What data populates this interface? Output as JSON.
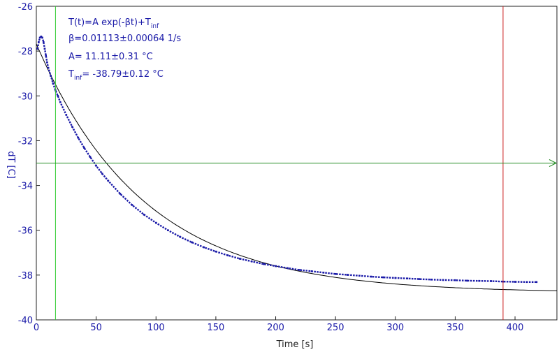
{
  "chart_data": {
    "type": "scatter",
    "title": "",
    "xlabel": "Time [s]",
    "ylabel": "dT [C]",
    "xlim": [
      0,
      435
    ],
    "ylim": [
      -40,
      -26
    ],
    "x_ticks": [
      0,
      50,
      100,
      150,
      200,
      250,
      300,
      350,
      400
    ],
    "y_ticks": [
      -40,
      -38,
      -36,
      -34,
      -32,
      -30,
      -28,
      -26
    ],
    "grid": false,
    "colors": {
      "series": "#1a1aa8",
      "fit": "#000000",
      "horizontal_cursor": "#228b22",
      "left_cursor": "#33cc33",
      "right_cursor": "#cc2222"
    },
    "cursors": {
      "vertical_left_x": 16,
      "vertical_right_x": 390,
      "horizontal_y": -33
    },
    "fit": {
      "model": "exponential",
      "A": 11.11,
      "beta": 0.01113,
      "T_inf": -38.79,
      "x_range": [
        0,
        435
      ]
    },
    "series": [
      {
        "type": "scatter",
        "x": [
          1,
          2,
          3,
          4,
          5,
          6,
          7,
          8,
          9,
          10,
          12,
          14,
          16,
          18,
          20,
          25,
          30,
          35,
          40,
          45,
          50,
          55,
          60,
          70,
          80,
          90,
          100,
          110,
          120,
          130,
          140,
          150,
          160,
          170,
          180,
          190,
          200,
          210,
          220,
          230,
          240,
          250,
          260,
          270,
          280,
          290,
          300,
          310,
          320,
          330,
          340,
          350,
          360,
          370,
          380,
          390,
          400,
          410,
          418
        ],
        "y": [
          -27.9,
          -27.6,
          -27.4,
          -27.35,
          -27.4,
          -27.6,
          -27.9,
          -28.2,
          -28.5,
          -28.75,
          -29.1,
          -29.45,
          -29.75,
          -30.0,
          -30.28,
          -30.85,
          -31.38,
          -31.87,
          -32.32,
          -32.73,
          -33.12,
          -33.47,
          -33.79,
          -34.37,
          -34.87,
          -35.3,
          -35.67,
          -36.0,
          -36.29,
          -36.54,
          -36.76,
          -36.95,
          -37.12,
          -37.27,
          -37.39,
          -37.51,
          -37.6,
          -37.69,
          -37.77,
          -37.83,
          -37.89,
          -37.95,
          -37.99,
          -38.03,
          -38.07,
          -38.1,
          -38.13,
          -38.15,
          -38.18,
          -38.2,
          -38.22,
          -38.23,
          -38.25,
          -38.26,
          -38.27,
          -38.29,
          -38.3,
          -38.31,
          -38.31
        ]
      }
    ],
    "annotations": {
      "model_prefix": "T(t)=A exp(-βt)+T",
      "model_sub": "inf",
      "beta_text": "β=0.01113±0.00064 1/s",
      "a_text": "A= 11.11±0.31 °C",
      "tinf_prefix": "T",
      "tinf_sub": "inf",
      "tinf_value": "= -38.79±0.12 °C"
    }
  }
}
